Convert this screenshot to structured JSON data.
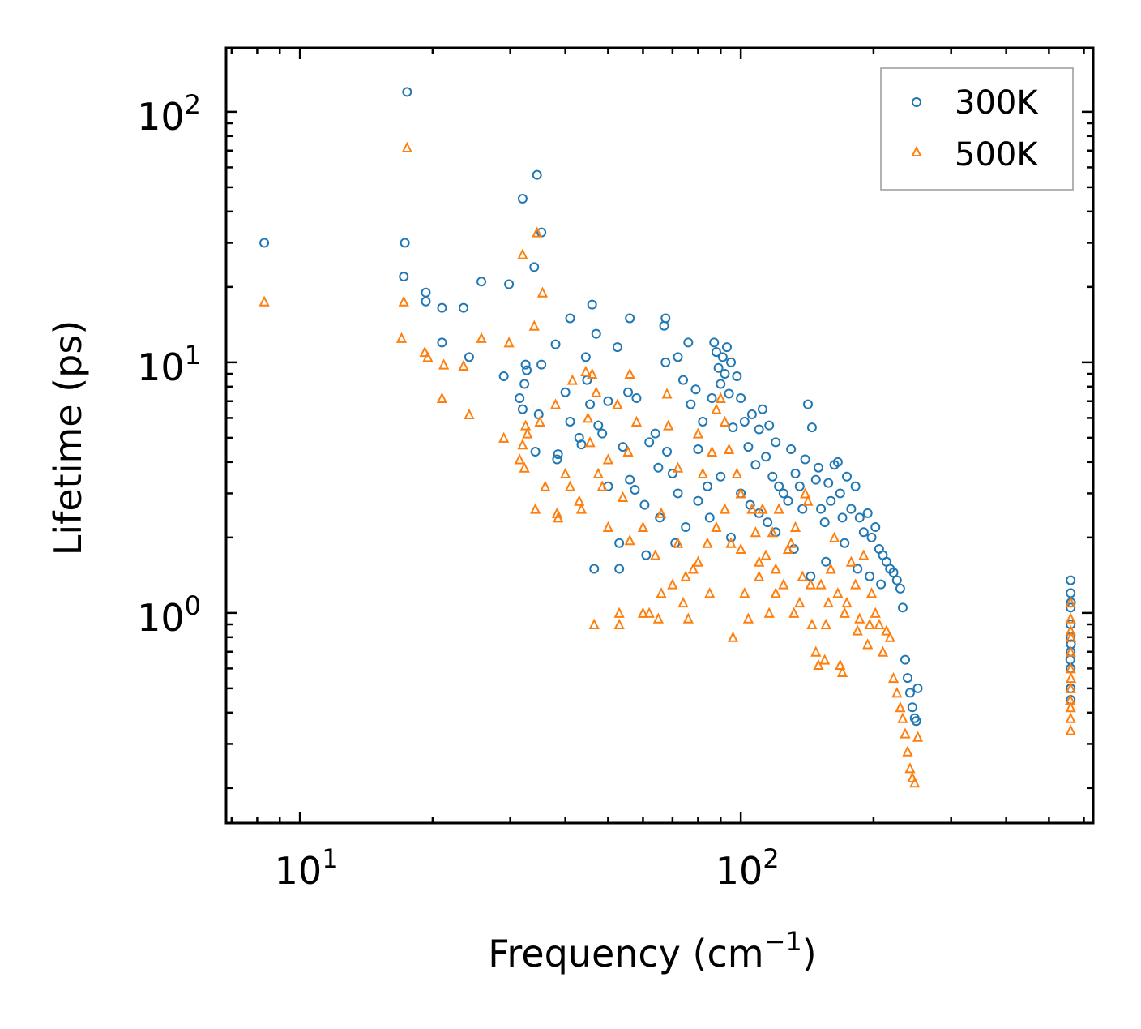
{
  "chart_data": {
    "type": "scatter",
    "xscale": "log",
    "yscale": "log",
    "xlabel": "Frequency (cm",
    "xlabel_sup": "−1",
    "xlabel_end": ")",
    "ylabel": "Lifetime (ps)",
    "xlim": [
      6.8,
      630
    ],
    "ylim": [
      0.145,
      180
    ],
    "xticks": [
      {
        "value": 10,
        "base": "10",
        "exp": "1"
      },
      {
        "value": 100,
        "base": "10",
        "exp": "2"
      }
    ],
    "yticks": [
      {
        "value": 1,
        "base": "10",
        "exp": "0"
      },
      {
        "value": 10,
        "base": "10",
        "exp": "1"
      },
      {
        "value": 100,
        "base": "10",
        "exp": "2"
      }
    ],
    "legend_position": "top-right",
    "series": [
      {
        "name": "300K",
        "marker": "circle",
        "color": "#1f77b4",
        "points": [
          [
            8.3,
            30
          ],
          [
            17.5,
            120
          ],
          [
            17.3,
            30
          ],
          [
            17.2,
            22
          ],
          [
            19.3,
            19
          ],
          [
            19.3,
            17.5
          ],
          [
            21,
            16.5
          ],
          [
            21,
            12
          ],
          [
            23.5,
            16.5
          ],
          [
            24.2,
            10.5
          ],
          [
            25.8,
            21
          ],
          [
            29,
            8.8
          ],
          [
            29.8,
            20.5
          ],
          [
            31.5,
            7.2
          ],
          [
            32,
            45
          ],
          [
            32,
            6.5
          ],
          [
            32.3,
            8.2
          ],
          [
            32.5,
            9.8
          ],
          [
            32.7,
            9.3
          ],
          [
            34,
            24
          ],
          [
            34.5,
            56
          ],
          [
            35.3,
            33
          ],
          [
            35.3,
            9.8
          ],
          [
            34.8,
            6.2
          ],
          [
            34.2,
            4.4
          ],
          [
            38,
            11.8
          ],
          [
            38.3,
            4.1
          ],
          [
            38.5,
            4.3
          ],
          [
            40,
            7.6
          ],
          [
            41,
            15
          ],
          [
            41,
            5.8
          ],
          [
            43,
            5.0
          ],
          [
            43.5,
            4.7
          ],
          [
            44.5,
            10.5
          ],
          [
            44.8,
            8.5
          ],
          [
            45.5,
            6.8
          ],
          [
            46,
            17
          ],
          [
            46.5,
            1.5
          ],
          [
            47,
            13
          ],
          [
            47.5,
            5.6
          ],
          [
            48.5,
            5.2
          ],
          [
            50,
            7.0
          ],
          [
            50,
            3.2
          ],
          [
            52.5,
            11.5
          ],
          [
            53,
            1.5
          ],
          [
            53,
            1.9
          ],
          [
            54,
            4.6
          ],
          [
            55.5,
            7.6
          ],
          [
            56,
            15
          ],
          [
            56,
            3.4
          ],
          [
            57.5,
            3.1
          ],
          [
            58,
            7.2
          ],
          [
            60.5,
            2.7
          ],
          [
            61,
            1.7
          ],
          [
            62,
            4.8
          ],
          [
            64,
            5.2
          ],
          [
            65,
            3.8
          ],
          [
            65.5,
            2.4
          ],
          [
            67,
            14
          ],
          [
            67.5,
            15
          ],
          [
            67.5,
            10
          ],
          [
            68,
            4.4
          ],
          [
            70,
            3.6
          ],
          [
            71,
            1.9
          ],
          [
            72,
            10.5
          ],
          [
            74,
            8.5
          ],
          [
            76,
            12
          ],
          [
            77,
            6.8
          ],
          [
            79,
            7.8
          ],
          [
            80,
            4.5
          ],
          [
            82,
            5.8
          ],
          [
            84,
            3.2
          ],
          [
            86,
            7.2
          ],
          [
            87,
            12
          ],
          [
            88,
            11
          ],
          [
            89,
            9.5
          ],
          [
            90,
            8.2
          ],
          [
            91,
            10.5
          ],
          [
            92,
            9
          ],
          [
            93,
            11.5
          ],
          [
            94,
            7.5
          ],
          [
            95,
            10
          ],
          [
            96,
            5.5
          ],
          [
            98,
            8.8
          ],
          [
            100,
            7.2
          ],
          [
            102,
            5.8
          ],
          [
            104,
            4.6
          ],
          [
            106,
            6.2
          ],
          [
            108,
            3.9
          ],
          [
            110,
            5.4
          ],
          [
            112,
            6.5
          ],
          [
            114,
            4.2
          ],
          [
            116,
            5.6
          ],
          [
            118,
            3.5
          ],
          [
            120,
            4.8
          ],
          [
            122,
            3.2
          ],
          [
            125,
            3.0
          ],
          [
            128,
            2.8
          ],
          [
            130,
            4.5
          ],
          [
            133,
            3.6
          ],
          [
            136,
            3.2
          ],
          [
            138,
            2.6
          ],
          [
            140,
            4.1
          ],
          [
            142,
            6.8
          ],
          [
            145,
            5.5
          ],
          [
            148,
            3.4
          ],
          [
            150,
            3.8
          ],
          [
            152,
            2.6
          ],
          [
            155,
            2.3
          ],
          [
            158,
            3.3
          ],
          [
            160,
            2.8
          ],
          [
            163,
            3.9
          ],
          [
            166,
            4.0
          ],
          [
            168,
            3.0
          ],
          [
            170,
            2.4
          ],
          [
            174,
            3.5
          ],
          [
            178,
            2.6
          ],
          [
            182,
            3.2
          ],
          [
            186,
            2.4
          ],
          [
            190,
            2.1
          ],
          [
            194,
            2.5
          ],
          [
            198,
            2.0
          ],
          [
            202,
            2.2
          ],
          [
            206,
            1.8
          ],
          [
            210,
            1.7
          ],
          [
            214,
            1.6
          ],
          [
            218,
            1.5
          ],
          [
            222,
            1.45
          ],
          [
            226,
            1.35
          ],
          [
            230,
            1.25
          ],
          [
            233,
            1.05
          ],
          [
            236,
            0.65
          ],
          [
            239,
            0.55
          ],
          [
            242,
            0.48
          ],
          [
            245,
            0.42
          ],
          [
            248,
            0.38
          ],
          [
            250,
            0.37
          ],
          [
            252,
            0.5
          ],
          [
            120,
            2.1
          ],
          [
            132,
            1.8
          ],
          [
            144,
            1.4
          ],
          [
            156,
            1.6
          ],
          [
            172,
            1.9
          ],
          [
            184,
            1.5
          ],
          [
            196,
            1.4
          ],
          [
            208,
            1.3
          ],
          [
            100,
            3.0
          ],
          [
            110,
            2.5
          ],
          [
            90,
            3.5
          ],
          [
            80,
            2.8
          ],
          [
            72,
            3.0
          ],
          [
            75,
            2.2
          ],
          [
            85,
            2.4
          ],
          [
            95,
            2.0
          ],
          [
            105,
            2.7
          ],
          [
            115,
            2.3
          ],
          [
            560,
            1.35
          ],
          [
            560,
            1.2
          ],
          [
            560,
            1.05
          ],
          [
            560,
            0.9
          ],
          [
            560,
            0.8
          ],
          [
            560,
            0.7
          ],
          [
            560,
            0.6
          ],
          [
            560,
            0.5
          ],
          [
            560,
            0.45
          ],
          [
            561,
            1.1
          ],
          [
            561,
            0.75
          ],
          [
            559,
            0.65
          ]
        ]
      },
      {
        "name": "500K",
        "marker": "triangle",
        "color": "#ff7f0e",
        "points": [
          [
            8.3,
            17.5
          ],
          [
            17.5,
            72
          ],
          [
            17.2,
            17.5
          ],
          [
            17,
            12.5
          ],
          [
            19.2,
            11
          ],
          [
            19.5,
            10.5
          ],
          [
            21,
            7.2
          ],
          [
            21.2,
            9.8
          ],
          [
            23.5,
            9.7
          ],
          [
            24.2,
            6.2
          ],
          [
            25.8,
            12.5
          ],
          [
            29,
            5.0
          ],
          [
            29.8,
            12
          ],
          [
            31.5,
            4.1
          ],
          [
            32,
            27
          ],
          [
            32,
            4.7
          ],
          [
            32.3,
            3.8
          ],
          [
            32.5,
            5.6
          ],
          [
            32.8,
            5.2
          ],
          [
            34,
            14
          ],
          [
            34.5,
            33
          ],
          [
            35.5,
            19
          ],
          [
            35,
            5.8
          ],
          [
            36,
            3.2
          ],
          [
            34.2,
            2.6
          ],
          [
            38,
            6.8
          ],
          [
            38.3,
            2.5
          ],
          [
            38.5,
            2.4
          ],
          [
            40,
            3.6
          ],
          [
            41.5,
            8.5
          ],
          [
            41,
            3.2
          ],
          [
            43,
            2.8
          ],
          [
            43.5,
            2.6
          ],
          [
            44.5,
            9.2
          ],
          [
            45,
            6.0
          ],
          [
            45.5,
            4.8
          ],
          [
            46,
            9.0
          ],
          [
            46.5,
            0.9
          ],
          [
            47,
            7.6
          ],
          [
            47.5,
            3.6
          ],
          [
            48.5,
            3.2
          ],
          [
            50,
            4.1
          ],
          [
            50,
            2.2
          ],
          [
            52.5,
            6.8
          ],
          [
            53,
            0.9
          ],
          [
            53,
            1.0
          ],
          [
            54,
            2.9
          ],
          [
            55.5,
            4.4
          ],
          [
            56,
            9.0
          ],
          [
            56,
            1.95
          ],
          [
            58,
            5.8
          ],
          [
            60,
            1.0
          ],
          [
            62,
            1.0
          ],
          [
            65,
            0.95
          ],
          [
            66,
            1.2
          ],
          [
            68,
            7.5
          ],
          [
            68.5,
            5.6
          ],
          [
            70,
            1.3
          ],
          [
            72,
            3.8
          ],
          [
            74,
            1.1
          ],
          [
            76,
            0.95
          ],
          [
            78,
            1.5
          ],
          [
            80,
            5.2
          ],
          [
            82,
            3.6
          ],
          [
            84,
            1.9
          ],
          [
            86,
            4.4
          ],
          [
            88,
            6.5
          ],
          [
            90,
            7.2
          ],
          [
            92,
            5.8
          ],
          [
            94,
            4.5
          ],
          [
            95,
            1.9
          ],
          [
            96,
            0.8
          ],
          [
            98,
            3.6
          ],
          [
            100,
            3.0
          ],
          [
            102,
            1.2
          ],
          [
            104,
            0.95
          ],
          [
            106,
            2.6
          ],
          [
            108,
            2.1
          ],
          [
            110,
            1.4
          ],
          [
            112,
            2.6
          ],
          [
            114,
            1.7
          ],
          [
            116,
            1.0
          ],
          [
            118,
            2.1
          ],
          [
            120,
            1.5
          ],
          [
            122,
            2.6
          ],
          [
            125,
            1.3
          ],
          [
            128,
            1.8
          ],
          [
            130,
            1.9
          ],
          [
            133,
            2.2
          ],
          [
            136,
            1.1
          ],
          [
            138,
            1.4
          ],
          [
            140,
            3.0
          ],
          [
            142,
            2.8
          ],
          [
            145,
            0.9
          ],
          [
            148,
            0.7
          ],
          [
            150,
            0.62
          ],
          [
            152,
            1.3
          ],
          [
            155,
            0.65
          ],
          [
            158,
            1.1
          ],
          [
            160,
            1.5
          ],
          [
            163,
            2.0
          ],
          [
            166,
            1.2
          ],
          [
            168,
            0.62
          ],
          [
            170,
            0.58
          ],
          [
            174,
            1.1
          ],
          [
            178,
            1.6
          ],
          [
            182,
            1.3
          ],
          [
            186,
            0.95
          ],
          [
            190,
            1.7
          ],
          [
            194,
            0.75
          ],
          [
            198,
            1.2
          ],
          [
            202,
            1.0
          ],
          [
            206,
            0.9
          ],
          [
            210,
            0.7
          ],
          [
            214,
            0.85
          ],
          [
            218,
            0.8
          ],
          [
            222,
            0.55
          ],
          [
            226,
            0.48
          ],
          [
            230,
            0.42
          ],
          [
            233,
            0.38
          ],
          [
            236,
            0.33
          ],
          [
            239,
            0.28
          ],
          [
            242,
            0.24
          ],
          [
            245,
            0.22
          ],
          [
            248,
            0.21
          ],
          [
            252,
            0.32
          ],
          [
            92,
            2.6
          ],
          [
            100,
            1.8
          ],
          [
            110,
            1.6
          ],
          [
            120,
            1.2
          ],
          [
            132,
            1.0
          ],
          [
            144,
            1.3
          ],
          [
            156,
            0.9
          ],
          [
            172,
            1.0
          ],
          [
            184,
            0.85
          ],
          [
            196,
            0.9
          ],
          [
            80,
            1.6
          ],
          [
            72,
            1.9
          ],
          [
            75,
            1.4
          ],
          [
            85,
            1.2
          ],
          [
            64,
            1.7
          ],
          [
            60,
            2.2
          ],
          [
            66,
            2.5
          ],
          [
            88,
            2.2
          ],
          [
            560,
            1.1
          ],
          [
            560,
            0.95
          ],
          [
            560,
            0.85
          ],
          [
            560,
            0.7
          ],
          [
            560,
            0.6
          ],
          [
            560,
            0.5
          ],
          [
            560,
            0.42
          ],
          [
            560,
            0.38
          ],
          [
            560,
            0.34
          ],
          [
            561,
            0.8
          ],
          [
            561,
            0.55
          ],
          [
            559,
            0.45
          ]
        ]
      }
    ]
  }
}
